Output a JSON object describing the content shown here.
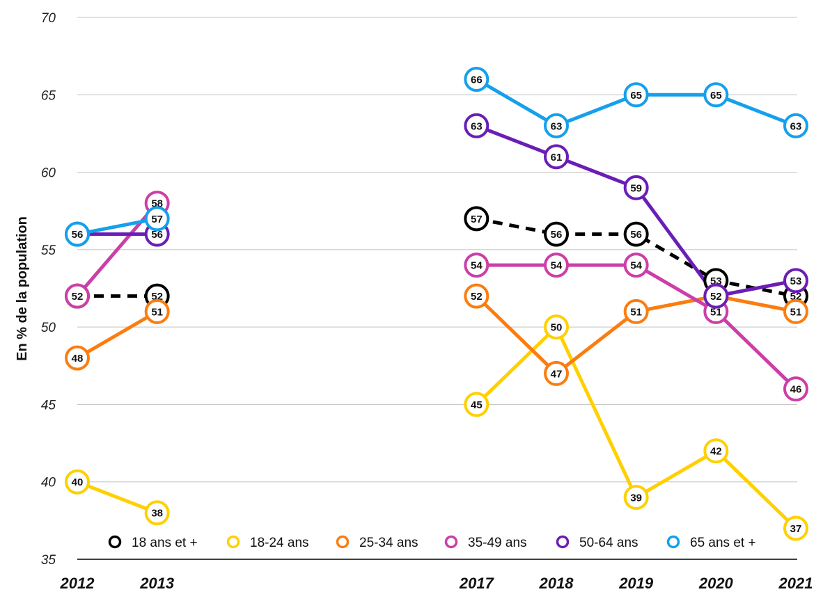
{
  "chart_data": {
    "type": "line",
    "title": "",
    "xlabel": "",
    "ylabel": "En % de la population",
    "ylim": [
      35,
      70
    ],
    "yticks": [
      35,
      40,
      45,
      50,
      55,
      60,
      65,
      70
    ],
    "grid": true,
    "legend_position": "bottom",
    "x": [
      "2012",
      "2013",
      "2017",
      "2018",
      "2019",
      "2020",
      "2021"
    ],
    "series": [
      {
        "name": "18 ans et +",
        "color": "#000000",
        "dashed": true,
        "values": [
          52,
          52,
          57,
          56,
          56,
          53,
          52
        ]
      },
      {
        "name": "18-24 ans",
        "color": "#ffd000",
        "dashed": false,
        "values": [
          40,
          38,
          45,
          50,
          39,
          42,
          37
        ]
      },
      {
        "name": "25-34 ans",
        "color": "#fb7d10",
        "dashed": false,
        "values": [
          48,
          51,
          52,
          47,
          51,
          52,
          51
        ]
      },
      {
        "name": "35-49 ans",
        "color": "#cc3ea8",
        "dashed": false,
        "values": [
          52,
          58,
          54,
          54,
          54,
          51,
          46
        ]
      },
      {
        "name": "50-64 ans",
        "color": "#6a1eb6",
        "dashed": false,
        "values": [
          56,
          56,
          63,
          61,
          59,
          52,
          53
        ]
      },
      {
        "name": "65 ans et +",
        "color": "#14a0ec",
        "dashed": false,
        "values": [
          56,
          57,
          66,
          63,
          65,
          65,
          63
        ]
      }
    ]
  }
}
